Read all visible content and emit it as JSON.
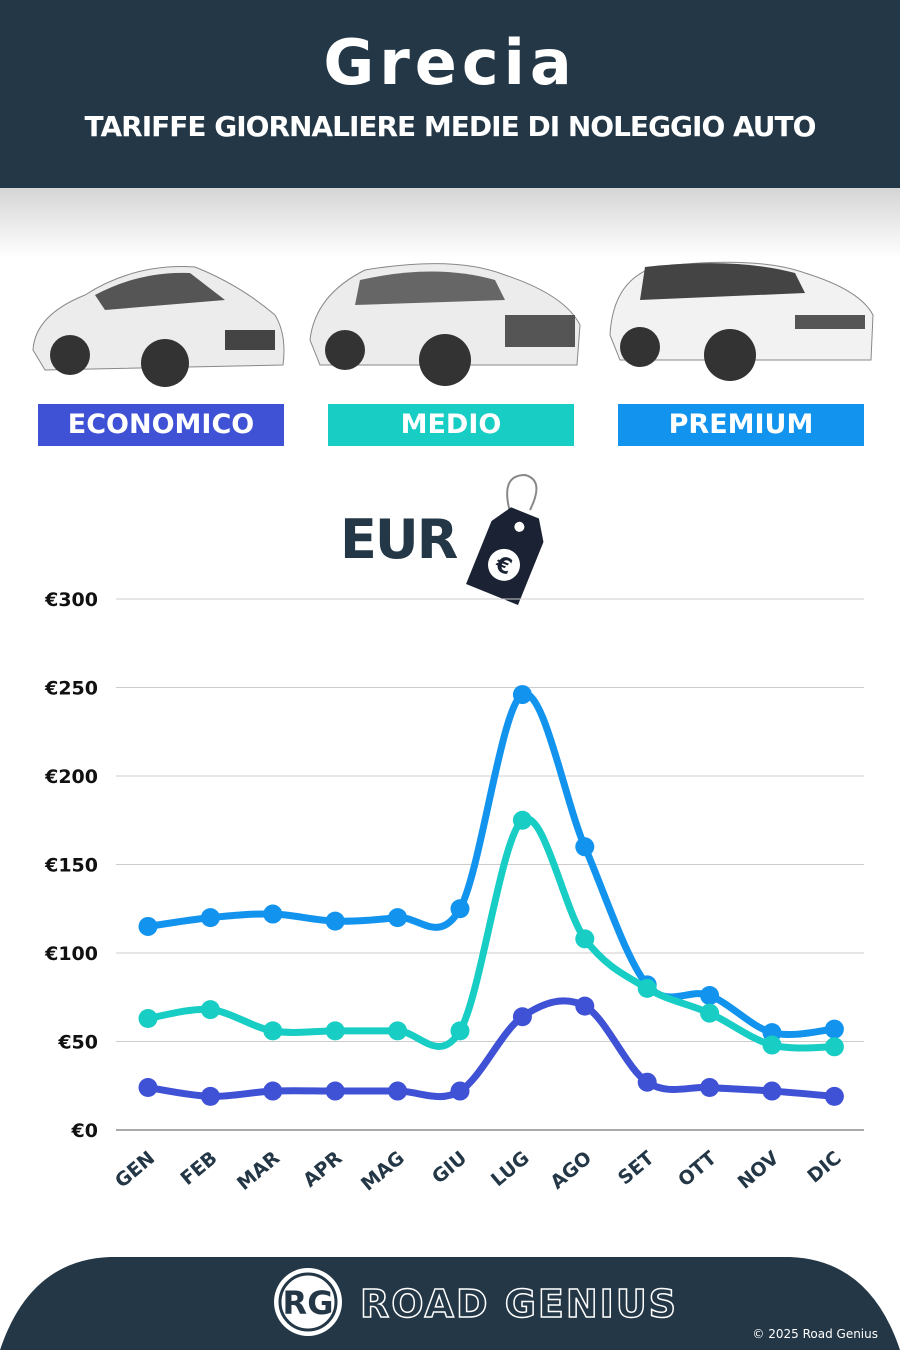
{
  "header": {
    "title": "Grecia",
    "subtitle": "TARIFFE GIORNALIERE MEDIE DI NOLEGGIO AUTO"
  },
  "categories_badges": [
    {
      "label": "ECONOMICO",
      "color": "#3f51d4"
    },
    {
      "label": "MEDIO",
      "color": "#17cdc4"
    },
    {
      "label": "PREMIUM",
      "color": "#1293ee"
    }
  ],
  "currency": {
    "label": "EUR",
    "icon": "euro-price-tag-icon"
  },
  "chart_data": {
    "type": "line",
    "categories": [
      "GEN",
      "FEB",
      "MAR",
      "APR",
      "MAG",
      "GIU",
      "LUG",
      "AGO",
      "SET",
      "OTT",
      "NOV",
      "DIC"
    ],
    "yticks": [
      "€0",
      "€50",
      "€100",
      "€150",
      "€200",
      "€250",
      "€300"
    ],
    "ylim": [
      0,
      300
    ],
    "grid": true,
    "series": [
      {
        "name": "PREMIUM",
        "color": "#1293ee",
        "values": [
          115,
          120,
          122,
          118,
          120,
          125,
          246,
          160,
          82,
          76,
          55,
          57
        ]
      },
      {
        "name": "MEDIO",
        "color": "#17cdc4",
        "values": [
          63,
          68,
          56,
          56,
          56,
          56,
          175,
          108,
          80,
          66,
          48,
          47
        ]
      },
      {
        "name": "ECONOMICO",
        "color": "#3f51d4",
        "values": [
          24,
          19,
          22,
          22,
          22,
          22,
          64,
          70,
          27,
          24,
          22,
          19
        ]
      }
    ]
  },
  "footer": {
    "brand": "ROAD GENIUS",
    "logo": "RG",
    "copyright": "© 2025 Road Genius"
  }
}
